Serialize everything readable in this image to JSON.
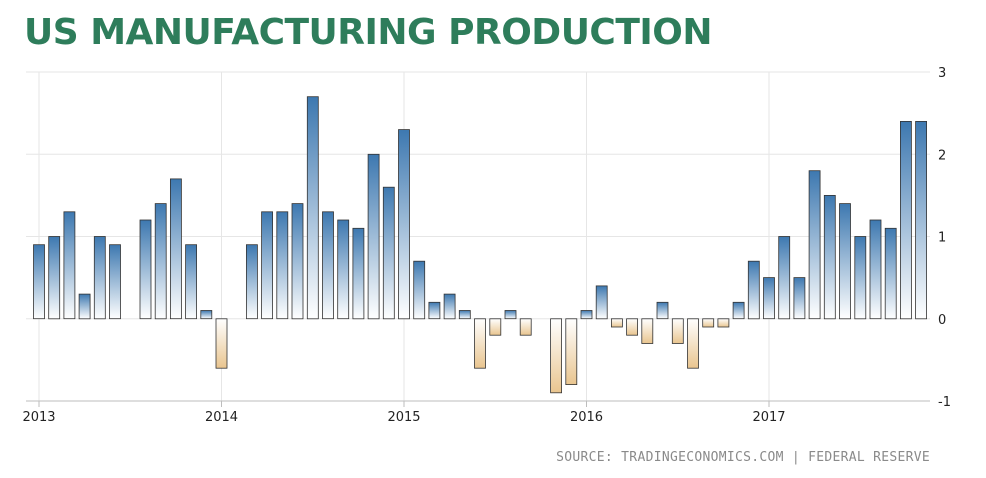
{
  "chart_data": {
    "type": "bar",
    "title": "US MANUFACTURING PRODUCTION",
    "source": "SOURCE: TRADINGECONOMICS.COM | FEDERAL RESERVE",
    "ylim": [
      -1,
      3
    ],
    "yticks": [
      -1,
      0,
      1,
      2,
      3
    ],
    "grid": true,
    "y_axis_position": "right",
    "x_tick_labels": [
      "2013",
      "2014",
      "2015",
      "2016",
      "2017"
    ],
    "colors": {
      "positive": "#3d78b0",
      "negative": "#e9c58f",
      "title": "#2e7d5b"
    },
    "series": [
      {
        "x": [
          "2013-01",
          "2013-02",
          "2013-03",
          "2013-04",
          "2013-05",
          "2013-06",
          "2013-07",
          "2013-08",
          "2013-09",
          "2013-10",
          "2013-11",
          "2013-12",
          "2014-01",
          "2014-02",
          "2014-03",
          "2014-04",
          "2014-05",
          "2014-06",
          "2014-07",
          "2014-08",
          "2014-09",
          "2014-10",
          "2014-11",
          "2014-12",
          "2015-01",
          "2015-02",
          "2015-03",
          "2015-04",
          "2015-05",
          "2015-06",
          "2015-07",
          "2015-08",
          "2015-09",
          "2015-10",
          "2015-11",
          "2015-12",
          "2016-01",
          "2016-02",
          "2016-03",
          "2016-04",
          "2016-05",
          "2016-06",
          "2016-07",
          "2016-08",
          "2016-09",
          "2016-10",
          "2016-11",
          "2016-12",
          "2017-01",
          "2017-02",
          "2017-03",
          "2017-04",
          "2017-05",
          "2017-06",
          "2017-07",
          "2017-08",
          "2017-09",
          "2017-10",
          "2017-11"
        ],
        "values": [
          0.9,
          1.0,
          1.3,
          0.3,
          1.0,
          0.9,
          0,
          1.2,
          1.4,
          1.7,
          0.9,
          0.1,
          -0.6,
          0,
          0.9,
          1.3,
          1.3,
          1.4,
          2.7,
          1.3,
          1.2,
          1.1,
          2.0,
          1.6,
          2.3,
          0.7,
          0.2,
          0.3,
          0.1,
          -0.6,
          -0.2,
          0.1,
          -0.2,
          0,
          -0.9,
          -0.8,
          0.1,
          0.4,
          -0.1,
          -0.2,
          -0.3,
          0.2,
          -0.3,
          -0.6,
          -0.1,
          -0.1,
          0.2,
          0.7,
          0.5,
          1.0,
          0.5,
          1.8,
          1.5,
          1.4,
          1.0,
          1.2,
          1.1,
          2.4,
          2.4
        ]
      }
    ]
  }
}
